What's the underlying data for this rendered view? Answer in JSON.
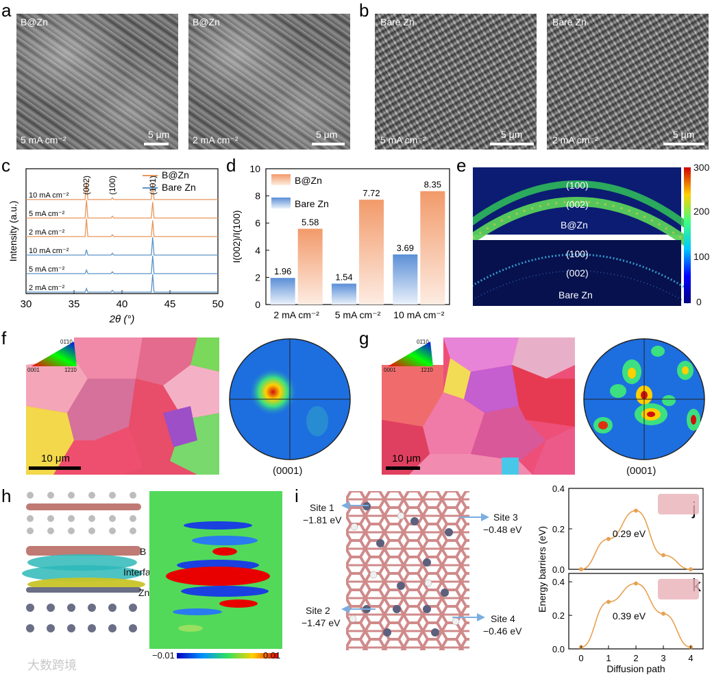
{
  "panel_labels": {
    "a": "a",
    "b": "b",
    "c": "c",
    "d": "d",
    "e": "e",
    "f": "f",
    "g": "g",
    "h": "h",
    "i": "i",
    "j": "j",
    "k": "k"
  },
  "panel_a": {
    "left": {
      "title": "B@Zn",
      "current": "5 mA cm⁻²",
      "scale": "5 μm"
    },
    "right": {
      "title": "B@Zn",
      "current": "2 mA cm⁻²",
      "scale": "5 μm"
    }
  },
  "panel_b": {
    "left": {
      "title": "Bare Zn",
      "current": "5 mA cm⁻²",
      "scale": "5 μm"
    },
    "right": {
      "title": "Bare Zn",
      "current": "2 mA cm⁻²",
      "scale": "5 μm"
    }
  },
  "panel_e": {
    "top_label": "B@Zn",
    "bottom_label": "Bare Zn",
    "ring_100": "(100)",
    "ring_002": "(002)",
    "colorbar_ticks": [
      "300",
      "200",
      "100",
      "0"
    ]
  },
  "panel_f": {
    "scale": "10 μm",
    "pole_label": "(0001)",
    "key_top": "01̄10",
    "key_left": "0001",
    "key_right": "1̄21̄0"
  },
  "panel_g": {
    "scale": "10 μm",
    "pole_label": "(0001)",
    "key_top": "01̄10",
    "key_left": "0001",
    "key_right": "1̄21̄0"
  },
  "panel_h": {
    "label_B": "B",
    "label_interface": "Interface",
    "label_Zn": "Zn",
    "cbar_min": "−0.01",
    "cbar_max": "0.01"
  },
  "panel_i": {
    "sites": [
      {
        "name": "Site 1",
        "energy": "−1.81 eV"
      },
      {
        "name": "Site 2",
        "energy": "−1.47 eV"
      },
      {
        "name": "Site 3",
        "energy": "−0.48 eV"
      },
      {
        "name": "Site 4",
        "energy": "−0.46 eV"
      }
    ]
  },
  "watermark": "大数跨境",
  "chart_data": [
    {
      "id": "c",
      "type": "line",
      "xlabel": "2θ (°)",
      "ylabel": "Intensity (a.u.)",
      "xlim": [
        30,
        50
      ],
      "xticks": [
        "30",
        "35",
        "40",
        "45",
        "50"
      ],
      "peak_labels": [
        "(002)",
        "(100)",
        "(101)"
      ],
      "peak_positions": [
        36.3,
        39.0,
        43.2
      ],
      "legend": [
        "B@Zn",
        "Bare Zn"
      ],
      "colors": {
        "B@Zn": "#e8955a",
        "Bare Zn": "#5b93c7"
      },
      "series": [
        {
          "name": "10 mA cm⁻²",
          "group": "B@Zn",
          "peaks": [
            10,
            1,
            9
          ]
        },
        {
          "name": "5 mA cm⁻²",
          "group": "B@Zn",
          "peaks": [
            10,
            1,
            9
          ]
        },
        {
          "name": "2 mA cm⁻²",
          "group": "B@Zn",
          "peaks": [
            10,
            1,
            9
          ]
        },
        {
          "name": "10 mA cm⁻²",
          "group": "Bare Zn",
          "peaks": [
            3,
            1,
            10
          ]
        },
        {
          "name": "5 mA cm⁻²",
          "group": "Bare Zn",
          "peaks": [
            2,
            1,
            10
          ]
        },
        {
          "name": "2 mA cm⁻²",
          "group": "Bare Zn",
          "peaks": [
            2,
            1,
            10
          ]
        }
      ]
    },
    {
      "id": "d",
      "type": "bar",
      "ylabel": "I(002)/I(100)",
      "ylim": [
        0,
        10
      ],
      "yticks": [
        "0",
        "2",
        "4",
        "6",
        "8",
        "10"
      ],
      "categories": [
        "2 mA cm⁻²",
        "5 mA cm⁻²",
        "10 mA cm⁻²"
      ],
      "series": [
        {
          "name": "Bare Zn",
          "values": [
            1.96,
            1.54,
            3.69
          ],
          "labels": [
            "1.96",
            "1.54",
            "3.69"
          ]
        },
        {
          "name": "B@Zn",
          "values": [
            5.58,
            7.72,
            8.35
          ],
          "labels": [
            "5.58",
            "7.72",
            "8.35"
          ]
        }
      ]
    },
    {
      "id": "j",
      "type": "line",
      "x": [
        0,
        1,
        2,
        3,
        4
      ],
      "values": [
        0.0,
        0.15,
        0.29,
        0.07,
        0.0
      ],
      "ylim": [
        0,
        0.4
      ],
      "yticks": [
        "0.0",
        "0.2",
        "0.4"
      ],
      "peak_label": "0.29 eV"
    },
    {
      "id": "k",
      "type": "line",
      "x": [
        0,
        1,
        2,
        3,
        4
      ],
      "values": [
        0.01,
        0.28,
        0.39,
        0.21,
        0.01
      ],
      "ylim": [
        0,
        0.45
      ],
      "yticks": [
        "0.0",
        "0.2",
        "0.4"
      ],
      "xticks": [
        "0",
        "1",
        "2",
        "3",
        "4"
      ],
      "xlabel": "Diffusion path",
      "ylabel": "Energy barriers (eV)",
      "peak_label": "0.39 eV"
    }
  ]
}
